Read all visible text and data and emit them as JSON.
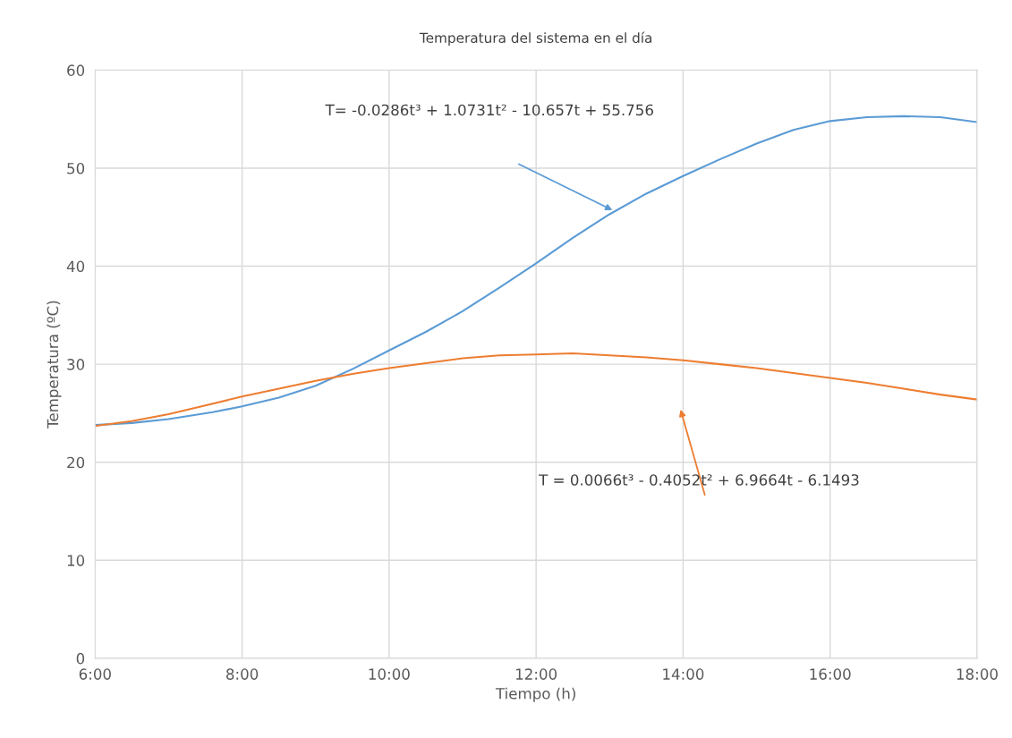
{
  "chart_data": {
    "type": "line",
    "title": "Temperatura del sistema en el día",
    "xlabel": "Tiempo (h)",
    "ylabel": "Temperatura (ºC)",
    "series": [
      {
        "color": "#5b9bd5",
        "x": [
          6.0,
          6.5,
          7.0,
          7.6,
          8.0,
          8.5,
          9.0,
          9.5,
          10.0,
          10.5,
          11.0,
          11.5,
          12.0,
          12.5,
          13.0,
          13.5,
          14.0,
          14.5,
          15.0,
          15.5,
          16.0,
          16.5,
          17.0,
          17.5,
          18.0
        ],
        "values": [
          23.8,
          24.0,
          24.4,
          25.1,
          25.7,
          26.6,
          27.8,
          29.5,
          31.4,
          33.3,
          35.4,
          37.8,
          40.3,
          42.9,
          45.3,
          47.4,
          49.2,
          50.9,
          52.5,
          53.9,
          54.8,
          55.2,
          55.3,
          55.2,
          54.7
        ]
      },
      {
        "color": "#ed7d31",
        "x": [
          6.0,
          6.5,
          7.0,
          7.5,
          8.0,
          8.5,
          9.0,
          9.5,
          10.0,
          10.5,
          11.0,
          11.5,
          12.0,
          12.5,
          13.0,
          13.5,
          14.0,
          14.5,
          15.0,
          15.5,
          16.0,
          16.5,
          17.0,
          17.5,
          18.0
        ],
        "values": [
          23.7,
          24.2,
          24.9,
          25.8,
          26.7,
          27.5,
          28.3,
          29.0,
          29.6,
          30.1,
          30.6,
          30.9,
          31.0,
          31.1,
          30.9,
          30.7,
          30.4,
          30.0,
          29.6,
          29.1,
          28.6,
          28.1,
          27.5,
          26.9,
          26.4
        ]
      }
    ],
    "xlim": [
      6,
      18
    ],
    "xticks": [
      {
        "value": 6,
        "label": "6:00"
      },
      {
        "value": 8,
        "label": "8:00"
      },
      {
        "value": 10,
        "label": "10:00"
      },
      {
        "value": 12,
        "label": "12:00"
      },
      {
        "value": 14,
        "label": "14:00"
      },
      {
        "value": 16,
        "label": "16:00"
      },
      {
        "value": 18,
        "label": "18:00"
      }
    ],
    "ylim": [
      0,
      60
    ],
    "yticks": [
      0,
      10,
      20,
      30,
      40,
      50,
      60
    ],
    "grid": true,
    "marker": "none",
    "line_style": "solid",
    "annotations": [
      "T= -0.0286t³ + 1.0731t² - 10.657t + 55.756",
      "T = 0.0066t³ - 0.4052t² + 6.9664t - 6.1493"
    ]
  }
}
